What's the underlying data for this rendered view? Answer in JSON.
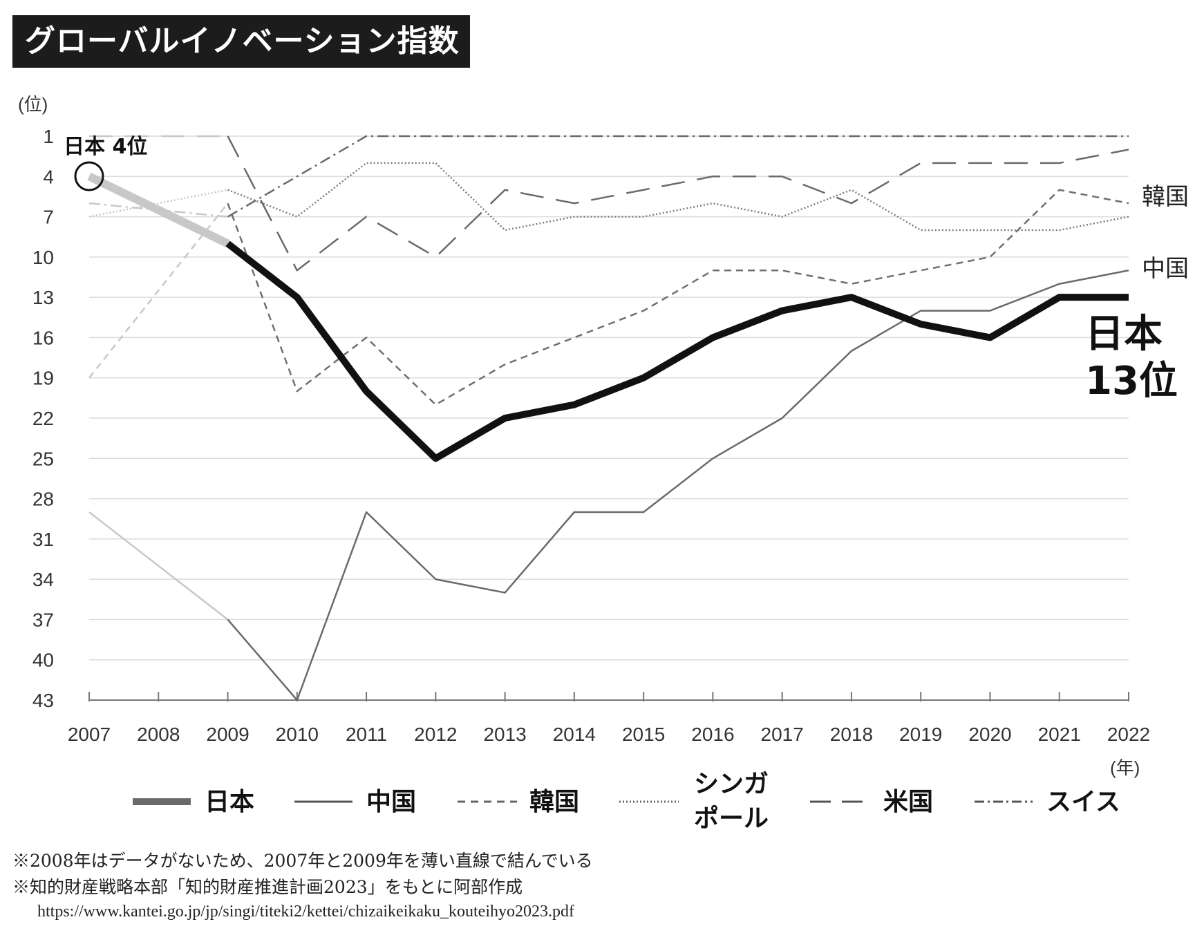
{
  "title": "グローバルイノベーション指数",
  "footnotes": [
    "※2008年はデータがないため、2007年と2009年を薄い直線で結んでいる",
    "※知的財産戦略本部「知的財産推進計画2023」をもとに阿部作成"
  ],
  "source_url": "https://www.kantei.go.jp/jp/singi/titeki2/kettei/chizaikeikaku_kouteihyo2023.pdf",
  "chart_data": {
    "type": "line",
    "title": "グローバルイノベーション指数",
    "ylabel": "(位)",
    "xlabel": "(年)",
    "ylim": [
      1,
      43
    ],
    "y_inverted": true,
    "yticks": [
      "1",
      "4",
      "7",
      "10",
      "13",
      "16",
      "19",
      "22",
      "25",
      "28",
      "31",
      "34",
      "37",
      "40",
      "43"
    ],
    "categories": [
      "2007",
      "2008",
      "2009",
      "2010",
      "2011",
      "2012",
      "2013",
      "2014",
      "2015",
      "2016",
      "2017",
      "2018",
      "2019",
      "2020",
      "2021",
      "2022"
    ],
    "missing_year": "2008",
    "series": [
      {
        "name": "日本",
        "key": "japan",
        "values": [
          4,
          null,
          9,
          13,
          20,
          25,
          22,
          21,
          19,
          16,
          14,
          13,
          15,
          16,
          13,
          13
        ]
      },
      {
        "name": "中国",
        "key": "china",
        "values": [
          29,
          null,
          37,
          43,
          29,
          34,
          35,
          29,
          29,
          25,
          22,
          17,
          14,
          14,
          12,
          11
        ]
      },
      {
        "name": "韓国",
        "key": "korea",
        "values": [
          19,
          null,
          6,
          20,
          16,
          21,
          18,
          16,
          14,
          11,
          11,
          12,
          11,
          10,
          5,
          6
        ]
      },
      {
        "name": "シンガポール",
        "key": "singapore",
        "values": [
          7,
          null,
          5,
          7,
          3,
          3,
          8,
          7,
          7,
          6,
          7,
          5,
          8,
          8,
          8,
          7
        ]
      },
      {
        "name": "米国",
        "key": "usa",
        "values": [
          1,
          null,
          1,
          11,
          7,
          10,
          5,
          6,
          5,
          4,
          4,
          6,
          3,
          3,
          3,
          2
        ]
      },
      {
        "name": "スイス",
        "key": "swiss",
        "values": [
          6,
          null,
          7,
          4,
          1,
          1,
          1,
          1,
          1,
          1,
          1,
          1,
          1,
          1,
          1,
          1
        ]
      }
    ],
    "annotations": {
      "japan_start": "日本 4位",
      "japan_end_line1": "日本",
      "japan_end_line2": "13位",
      "korea_label": "韓国",
      "china_label": "中国"
    },
    "legend": [
      {
        "label": "日本",
        "key": "japan"
      },
      {
        "label": "中国",
        "key": "china"
      },
      {
        "label": "韓国",
        "key": "korea"
      },
      {
        "label_line1": "シンガ",
        "label_line2": "ポール",
        "key": "singapore"
      },
      {
        "label": "米国",
        "key": "usa"
      },
      {
        "label": "スイス",
        "key": "swiss"
      }
    ],
    "colors": {
      "japan": "#111111",
      "china": "#6a6a6a",
      "korea": "#6f6f6f",
      "singapore": "#7a7a7a",
      "usa": "#6a6a6a",
      "swiss": "#6a6a6a",
      "faded": "#c8c8c8",
      "grid": "#dcdcdc"
    }
  }
}
